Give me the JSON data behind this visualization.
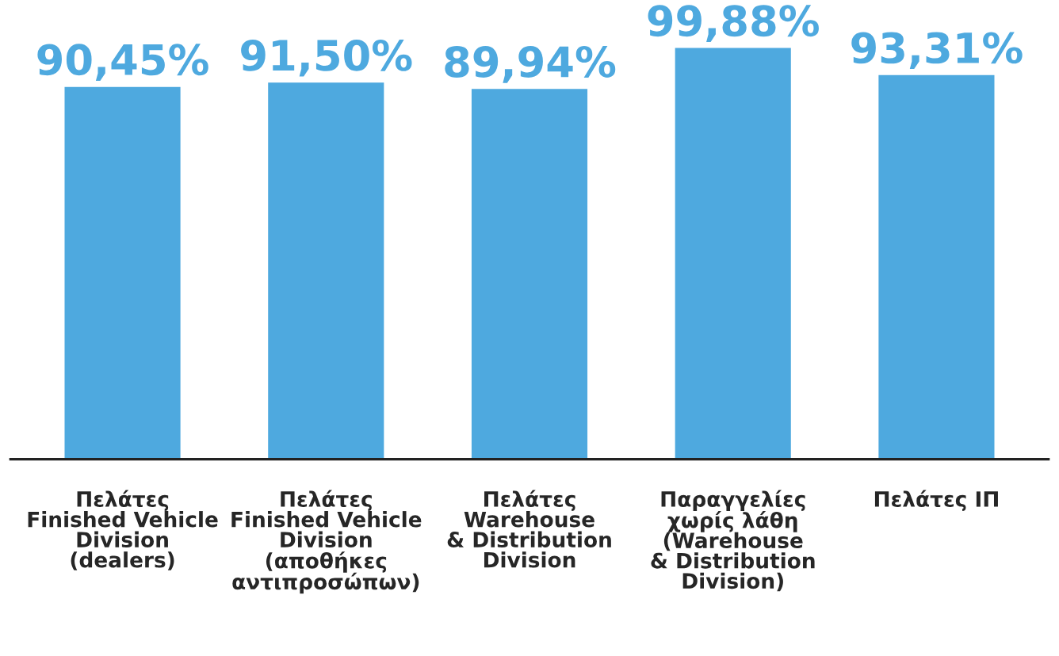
{
  "chart_data": {
    "type": "bar",
    "categories": [
      "Πελάτες\nFinished Vehicle\nDivision\n(dealers)",
      "Πελάτες\nFinished Vehicle\nDivision\n(αποθήκες\nαντιπροσώπων)",
      "Πελάτες\nWarehouse\n& Distribution\nDivision",
      "Παραγγελίες\nχωρίς λάθη\n(Warehouse\n& Distribution\nDivision)",
      "Πελάτες ΙΠ"
    ],
    "values": [
      90.45,
      91.5,
      89.94,
      99.88,
      93.31
    ],
    "value_labels": [
      "90,45%",
      "91,50%",
      "89,94%",
      "99,88%",
      "93,31%"
    ],
    "color": "#4ea9df",
    "tick_labels": "x",
    "grid": false,
    "legend": false
  }
}
